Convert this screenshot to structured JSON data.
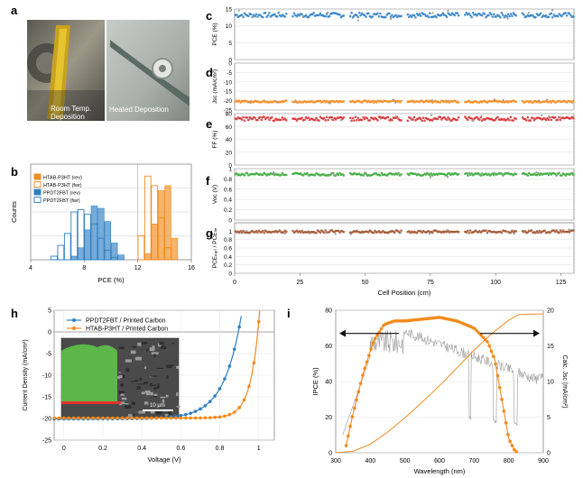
{
  "panel_letters": {
    "a": "a",
    "b": "b",
    "c": "c",
    "d": "d",
    "e": "e",
    "f": "f",
    "g": "g",
    "h": "h",
    "i": "i"
  },
  "photos": {
    "left_caption_1": "Room Temp.",
    "left_caption_2": "Deposition",
    "right_caption": "Heated Deposition"
  },
  "colors": {
    "blue": "#2e7fc4",
    "orange": "#f28a1c",
    "red": "#d62f33",
    "green": "#3aa83a",
    "brown": "#a0522d",
    "gray": "#999999"
  },
  "chart_data": [
    {
      "id": "b",
      "type": "bar",
      "xlabel": "PCE (%)",
      "ylabel": "Counts",
      "xlim": [
        4,
        16
      ],
      "xticks": [
        "4",
        "8",
        "12",
        "16"
      ],
      "legend": [
        "HTAB-P3HT (rev)",
        "HTAB-P3HT (fwr)",
        "PPDT2FBT (rev)",
        "PPDT2FBT (fwr)"
      ],
      "legend_position": "top-left",
      "bin_width": 0.5,
      "series": [
        {
          "name": "HTAB-P3HT (rev)",
          "color": "#f28a1c",
          "filled": true,
          "bins": [
            12.5,
            13,
            13.5,
            14,
            14.5
          ],
          "counts": [
            5,
            30,
            58,
            62,
            18
          ]
        },
        {
          "name": "HTAB-P3HT (fwr)",
          "color": "#f28a1c",
          "filled": false,
          "bins": [
            12,
            12.5,
            13,
            13.5,
            14
          ],
          "counts": [
            20,
            70,
            62,
            35,
            10
          ]
        },
        {
          "name": "PPDT2FBT (rev)",
          "color": "#2e7fc4",
          "filled": true,
          "bins": [
            7,
            7.5,
            8,
            8.5,
            9,
            9.5,
            10,
            10.5
          ],
          "counts": [
            3,
            10,
            25,
            45,
            43,
            32,
            14,
            4
          ]
        },
        {
          "name": "PPDT2FBT (fwr)",
          "color": "#2e7fc4",
          "filled": false,
          "bins": [
            5.5,
            6,
            6.5,
            7,
            7.5,
            8,
            8.5,
            9,
            9.5,
            10
          ],
          "counts": [
            3,
            12,
            22,
            40,
            42,
            38,
            30,
            18,
            8,
            2
          ]
        }
      ]
    },
    {
      "id": "c-g",
      "type": "scatter",
      "xlabel": "Cell Position (cm)",
      "xlim": [
        0,
        130
      ],
      "xticks": [
        0,
        25,
        50,
        75,
        100,
        125
      ],
      "segments": [
        [
          0,
          20
        ],
        [
          22,
          42
        ],
        [
          44,
          64
        ],
        [
          66,
          86
        ],
        [
          88,
          108
        ],
        [
          110,
          130
        ]
      ],
      "panels": [
        {
          "id": "c",
          "ylabel": "PCE (%)",
          "ylim": [
            0,
            15
          ],
          "yticks": [
            0,
            5,
            10,
            15
          ],
          "mean": 13.2,
          "spread": 0.7,
          "color": "#2e7fc4"
        },
        {
          "id": "d",
          "ylabel": "Jsc (mA/cm²)",
          "ylim": [
            -25,
            0
          ],
          "yticks": [
            0,
            -5,
            -10,
            -15,
            -20,
            -25
          ],
          "mean": -20.5,
          "spread": 0.5,
          "color": "#f28a1c"
        },
        {
          "id": "e",
          "ylabel": "FF (%)",
          "ylim": [
            0,
            80
          ],
          "yticks": [
            0,
            20,
            40,
            60,
            80
          ],
          "mean": 72,
          "spread": 3,
          "color": "#d62f33"
        },
        {
          "id": "f",
          "ylabel": "Voc (V)",
          "ylim": [
            0,
            1
          ],
          "yticks": [
            0,
            0.2,
            0.4,
            0.6,
            0.8,
            1
          ],
          "mean": 0.89,
          "spread": 0.025,
          "color": "#3aa83a"
        },
        {
          "id": "g",
          "ylabel": "PCEₚₐᵣₗ / PCEₗᵢₙ",
          "ylim": [
            0,
            1.2
          ],
          "yticks": [
            0,
            0.2,
            0.4,
            0.6,
            0.8,
            1
          ],
          "mean": 0.99,
          "spread": 0.03,
          "color": "#a0522d"
        }
      ]
    },
    {
      "id": "h",
      "type": "line",
      "xlabel": "Voltage (V)",
      "ylabel": "Current Density (mA/cm²)",
      "xlim": [
        -0.05,
        1.08
      ],
      "ylim": [
        -25,
        5
      ],
      "xticks": [
        0,
        0.2,
        0.4,
        0.6,
        0.8,
        1
      ],
      "yticks": [
        5,
        0,
        -5,
        -10,
        -15,
        -20,
        -25
      ],
      "legend_position": "top-left",
      "scale_bar": "10 µm",
      "series": [
        {
          "name": "PPDT2FBT / Printed Carbon",
          "color": "#2e7fc4",
          "jsc": 20.1,
          "voc": 0.895,
          "curv": 0.09
        },
        {
          "name": "HTAB-P3HT / Printed Carbon",
          "color": "#f28a1c",
          "jsc": 19.9,
          "voc": 0.995,
          "curv": 0.045
        }
      ]
    },
    {
      "id": "i",
      "type": "line",
      "xlabel": "Wavelength (nm)",
      "ylabel": "IPCE (%)",
      "y2label": "Calc. Jsc (mA/cm²)",
      "xlim": [
        300,
        900
      ],
      "ylim": [
        0,
        80
      ],
      "y2lim": [
        0,
        20
      ],
      "xticks": [
        300,
        400,
        500,
        600,
        700,
        800,
        900
      ],
      "yticks": [
        0,
        20,
        40,
        60,
        80
      ],
      "y2ticks": [
        0,
        5,
        10,
        15,
        20
      ],
      "ipce": {
        "x": [
          330,
          350,
          380,
          410,
          440,
          470,
          500,
          550,
          600,
          650,
          700,
          740,
          760,
          780,
          800,
          815,
          825
        ],
        "y": [
          4,
          22,
          45,
          63,
          72,
          74,
          74,
          75,
          76,
          74,
          70,
          62,
          52,
          30,
          8,
          2,
          0
        ]
      },
      "jsc_integrated": {
        "x": [
          300,
          350,
          400,
          450,
          500,
          550,
          600,
          650,
          700,
          750,
          800,
          830,
          900
        ],
        "y": [
          0,
          0.2,
          1.2,
          2.9,
          4.9,
          7.1,
          9.4,
          11.9,
          14.4,
          16.7,
          18.6,
          19.4,
          19.5
        ]
      },
      "spectrum_color": "#999999"
    }
  ]
}
